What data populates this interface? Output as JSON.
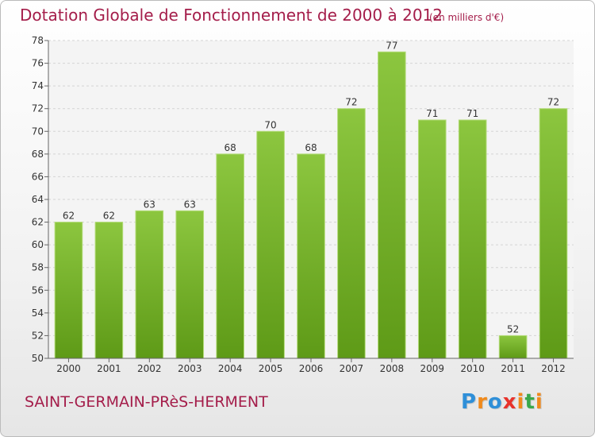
{
  "header": {
    "title": "Dotation Globale de Fonctionnement de 2000 à 2012",
    "unit": "(en milliers d'€)"
  },
  "footer": {
    "commune": "SAINT-GERMAIN-PRèS-HERMENT",
    "logo_letters": [
      "P",
      "r",
      "o",
      "x",
      "i",
      "t",
      "i"
    ],
    "logo_colors": [
      "#2f8fd8",
      "#f08a1c",
      "#2f8fd8",
      "#e8322b",
      "#f08a1c",
      "#3aa84b",
      "#f08a1c"
    ]
  },
  "chart_data": {
    "type": "bar",
    "categories": [
      "2000",
      "2001",
      "2002",
      "2003",
      "2004",
      "2005",
      "2006",
      "2007",
      "2008",
      "2009",
      "2010",
      "2011",
      "2012"
    ],
    "values": [
      62,
      62,
      63,
      63,
      68,
      70,
      68,
      72,
      77,
      71,
      71,
      52,
      72
    ],
    "ylim": [
      50,
      78
    ],
    "yticks": [
      50,
      52,
      54,
      56,
      58,
      60,
      62,
      64,
      66,
      68,
      70,
      72,
      74,
      76,
      78
    ],
    "grid": true,
    "bar_color": "#8cc63f",
    "bar_color_dark": "#5e9a17"
  }
}
